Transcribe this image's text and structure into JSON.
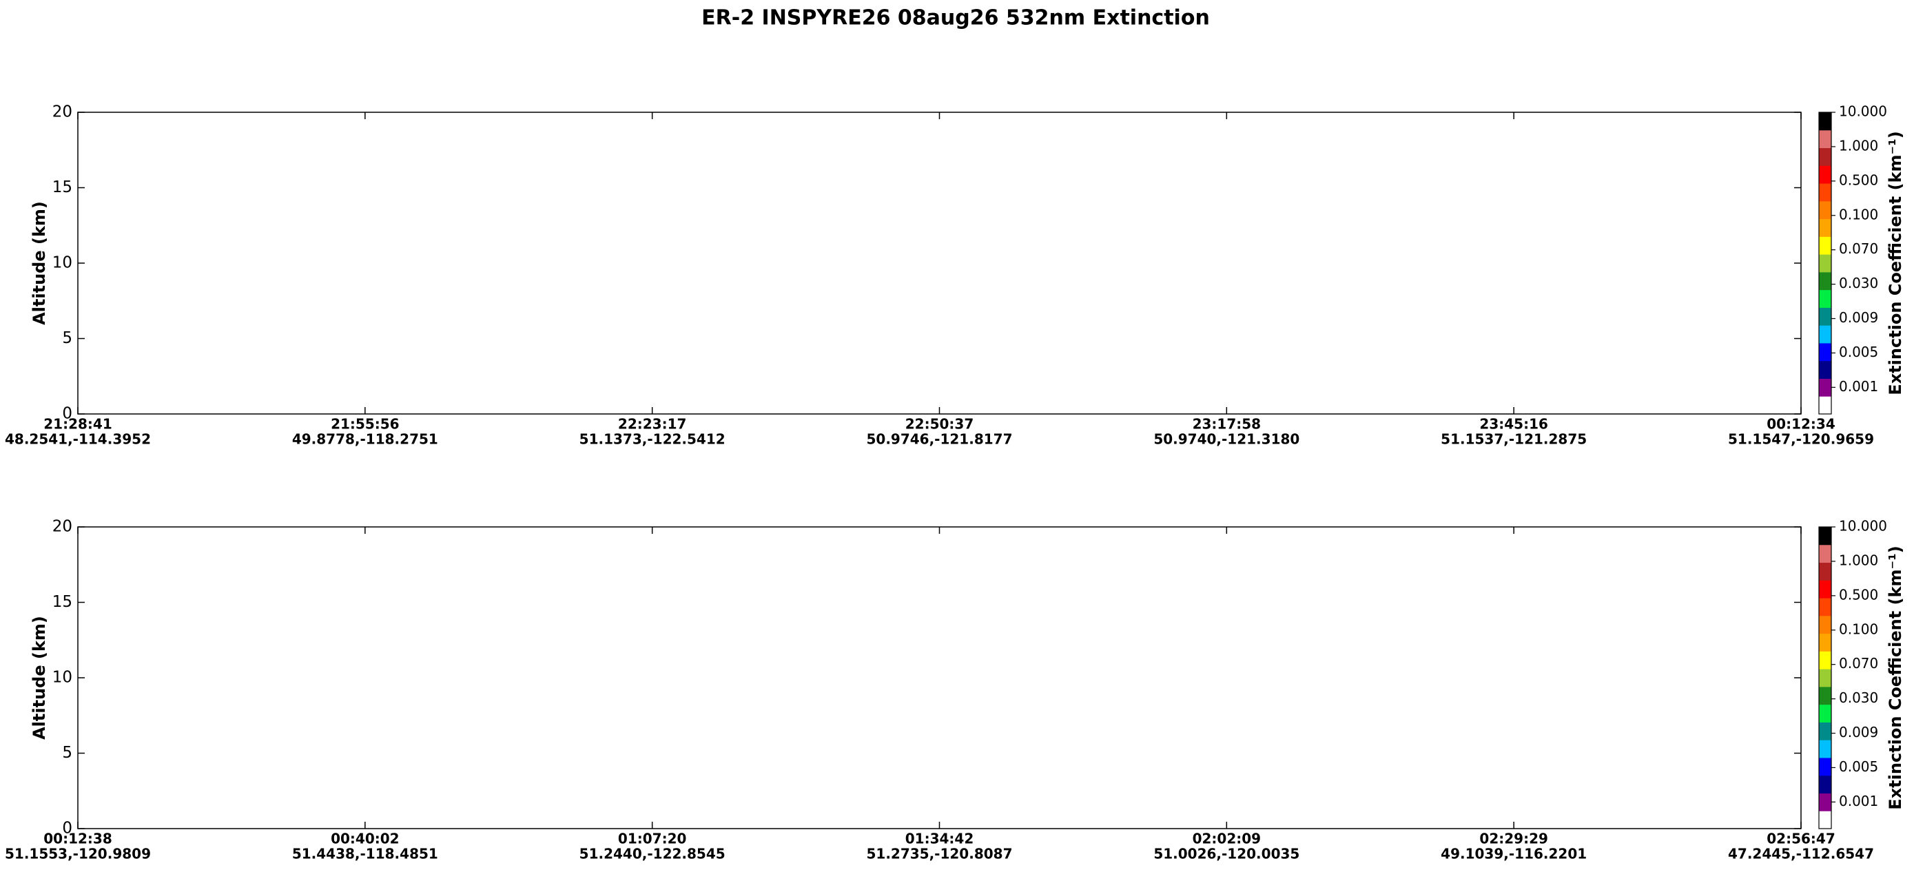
{
  "title": "ER-2  INSPYRE26  08aug26  532nm Extinction",
  "chart_data": [
    {
      "type": "curtain",
      "y_label": "Altitude (km)",
      "ylim": [
        0,
        20
      ],
      "yticks": [
        0,
        5,
        10,
        15,
        20
      ],
      "xticks": [
        {
          "time": "21:28:41",
          "location": "48.2541,-114.3952"
        },
        {
          "time": "21:55:56",
          "location": "49.8778,-118.2751"
        },
        {
          "time": "22:23:17",
          "location": "51.1373,-122.5412"
        },
        {
          "time": "22:50:37",
          "location": "50.9746,-121.8177"
        },
        {
          "time": "23:17:58",
          "location": "50.9740,-121.3180"
        },
        {
          "time": "23:45:16",
          "location": "51.1537,-121.2875"
        },
        {
          "time": "00:12:34",
          "location": "51.1547,-120.9659"
        }
      ],
      "colorbar": {
        "label": "Extinction Coefficient (km⁻¹)",
        "ticks": [
          {
            "value": 0.001,
            "label": "0.001"
          },
          {
            "value": 0.005,
            "label": "0.005"
          },
          {
            "value": 0.009,
            "label": "0.009"
          },
          {
            "value": 0.03,
            "label": "0.030"
          },
          {
            "value": 0.07,
            "label": "0.070"
          },
          {
            "value": 0.1,
            "label": "0.100"
          },
          {
            "value": 0.5,
            "label": "0.500"
          },
          {
            "value": 1,
            "label": "1.000"
          },
          {
            "value": 10,
            "label": "10.000"
          }
        ],
        "colors": [
          "#ffffff",
          "#8b008b",
          "#00008b",
          "#0000ff",
          "#00bfff",
          "#008b8b",
          "#00ee44",
          "#1c8b1c",
          "#9acd32",
          "#ffff00",
          "#ffa500",
          "#ff7f00",
          "#ff4500",
          "#ff0000",
          "#b22222",
          "#e07070",
          "#000000"
        ]
      }
    },
    {
      "type": "curtain",
      "y_label": "Altitude (km)",
      "ylim": [
        0,
        20
      ],
      "yticks": [
        0,
        5,
        10,
        15,
        20
      ],
      "xticks": [
        {
          "time": "00:12:38",
          "location": "51.1553,-120.9809"
        },
        {
          "time": "00:40:02",
          "location": "51.4438,-118.4851"
        },
        {
          "time": "01:07:20",
          "location": "51.2440,-122.8545"
        },
        {
          "time": "01:34:42",
          "location": "51.2735,-120.8087"
        },
        {
          "time": "02:02:09",
          "location": "51.0026,-120.0035"
        },
        {
          "time": "02:29:29",
          "location": "49.1039,-116.2201"
        },
        {
          "time": "02:56:47",
          "location": "47.2445,-112.6547"
        }
      ],
      "colorbar": {
        "label": "Extinction Coefficient (km⁻¹)",
        "ticks": [
          {
            "value": 0.001,
            "label": "0.001"
          },
          {
            "value": 0.005,
            "label": "0.005"
          },
          {
            "value": 0.009,
            "label": "0.009"
          },
          {
            "value": 0.03,
            "label": "0.030"
          },
          {
            "value": 0.07,
            "label": "0.070"
          },
          {
            "value": 0.1,
            "label": "0.100"
          },
          {
            "value": 0.5,
            "label": "0.500"
          },
          {
            "value": 1,
            "label": "1.000"
          },
          {
            "value": 10,
            "label": "10.000"
          }
        ],
        "colors": [
          "#ffffff",
          "#8b008b",
          "#00008b",
          "#0000ff",
          "#00bfff",
          "#008b8b",
          "#00ee44",
          "#1c8b1c",
          "#9acd32",
          "#ffff00",
          "#ffa500",
          "#ff7f00",
          "#ff4500",
          "#ff0000",
          "#b22222",
          "#e07070",
          "#000000"
        ]
      }
    }
  ]
}
